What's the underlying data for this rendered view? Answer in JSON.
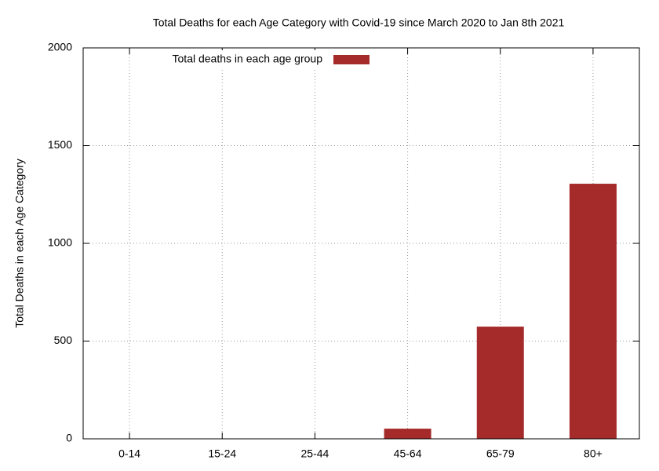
{
  "chart_data": {
    "type": "bar",
    "title": "Total Deaths for each Age Category with Covid-19 since March 2020 to Jan 8th 2021",
    "y_label": "Total Deaths in each Age Category",
    "categories": [
      "0-14",
      "15-24",
      "25-44",
      "45-64",
      "65-79",
      "80+"
    ],
    "series": [
      {
        "name": "Total deaths in each age group",
        "color": "#a52a2a",
        "values": [
          0,
          0,
          1,
          52,
          574,
          1305
        ]
      }
    ],
    "ylim": [
      0,
      2000
    ],
    "yticks": [
      0,
      500,
      1000,
      1500,
      2000
    ],
    "grid": true,
    "legend": "top-left"
  }
}
